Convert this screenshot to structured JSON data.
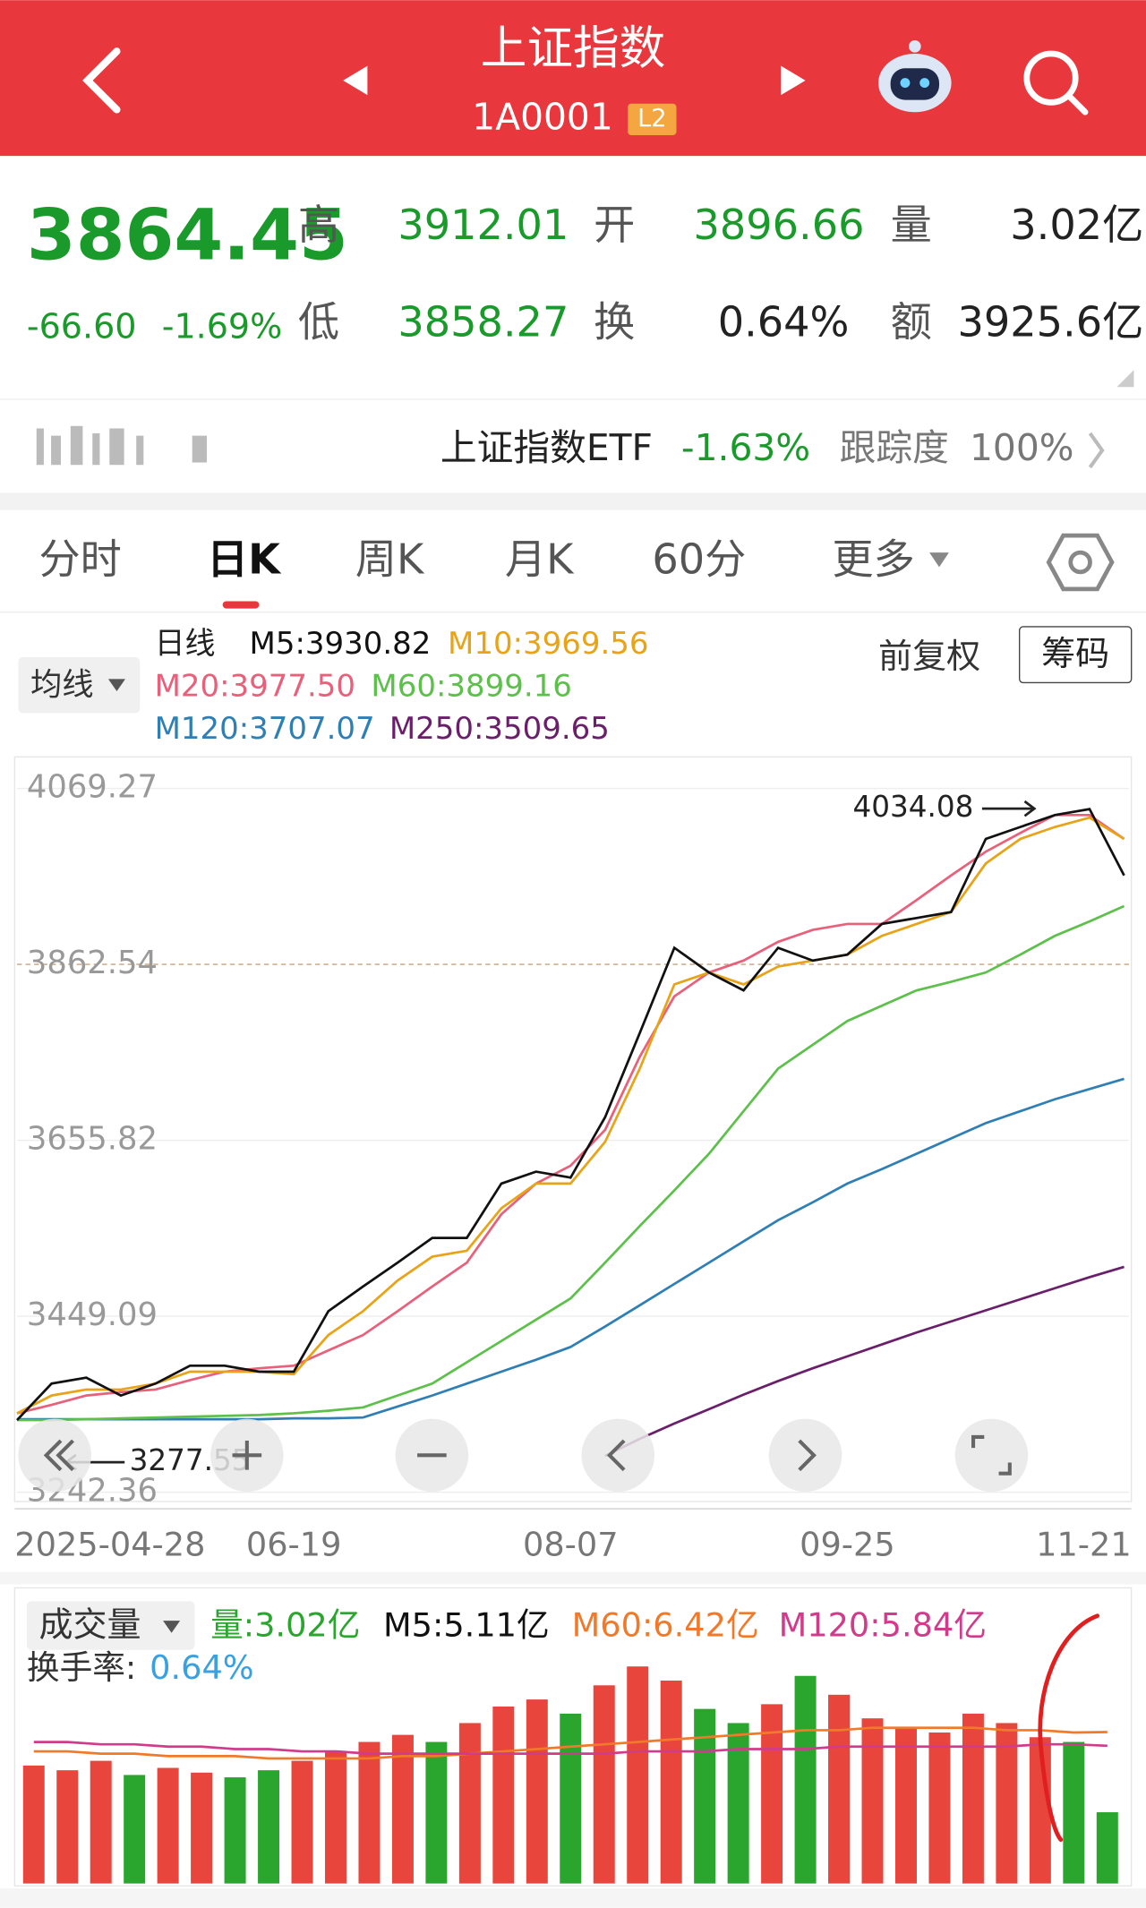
{
  "header": {
    "title": "上证指数",
    "code": "1A0001",
    "badge": "L2"
  },
  "quote": {
    "price": "3864.45",
    "change": "-66.60",
    "change_pct": "-1.69%",
    "fields": [
      {
        "label": "高",
        "value": "3912.01"
      },
      {
        "label": "开",
        "value": "3896.66"
      },
      {
        "label": "量",
        "value": "3.02亿"
      },
      {
        "label": "低",
        "value": "3858.27"
      },
      {
        "label": "换",
        "value": "0.64%"
      },
      {
        "label": "额",
        "value": "3925.6亿"
      }
    ]
  },
  "etf": {
    "name": "上证指数ETF",
    "change": "-1.63%",
    "track_label": "跟踪度",
    "track": "100%"
  },
  "tabs": [
    "分时",
    "日K",
    "周K",
    "月K",
    "60分",
    "更多"
  ],
  "indicator": {
    "button": "均线",
    "period": "日线",
    "adjust": "前复权",
    "chips": "筹码"
  },
  "chart_data": [
    {
      "type": "line",
      "title": "日线",
      "categories": [
        "2025-04-28",
        null,
        null,
        null,
        null,
        null,
        null,
        null,
        "06-19",
        null,
        null,
        null,
        null,
        null,
        null,
        null,
        "08-07",
        null,
        null,
        null,
        null,
        null,
        null,
        null,
        "09-25",
        null,
        null,
        null,
        null,
        null,
        null,
        null,
        "11-21"
      ],
      "series": [
        {
          "name": "M5:3930.82",
          "color": "#111111",
          "values": [
            3327,
            3370,
            3377,
            3356,
            3370,
            3391,
            3391,
            3384,
            3384,
            3455,
            3484,
            3512,
            3541,
            3541,
            3605,
            3619,
            3612,
            3683,
            3782,
            3882,
            3853,
            3832,
            3882,
            3867,
            3874,
            3910,
            3917,
            3924,
            4010,
            4024,
            4038,
            4045,
            3967
          ]
        },
        {
          "name": "M10:3969.56",
          "color": "#e8a317",
          "values": [
            3335,
            3356,
            3363,
            3363,
            3370,
            3384,
            3384,
            3384,
            3381,
            3427,
            3455,
            3491,
            3519,
            3526,
            3576,
            3605,
            3605,
            3654,
            3740,
            3839,
            3853,
            3839,
            3860,
            3867,
            3874,
            3896,
            3910,
            3924,
            3981,
            4010,
            4024,
            4035,
            4010
          ]
        },
        {
          "name": "M20:3977.50",
          "color": "#e8607a",
          "values": [
            3335,
            3345,
            3356,
            3360,
            3363,
            3374,
            3384,
            3388,
            3391,
            3409,
            3427,
            3455,
            3484,
            3512,
            3569,
            3605,
            3626,
            3668,
            3754,
            3825,
            3853,
            3867,
            3889,
            3903,
            3910,
            3910,
            3938,
            3967,
            3995,
            4017,
            4038,
            4038,
            4010
          ]
        },
        {
          "name": "M60:3899.16",
          "color": "#5cc04a",
          "values": [
            3327,
            3327,
            3328,
            3329,
            3330,
            3331,
            3332,
            3333,
            3335,
            3338,
            3342,
            3356,
            3370,
            3395,
            3420,
            3445,
            3470,
            3512,
            3555,
            3597,
            3640,
            3690,
            3740,
            3768,
            3796,
            3814,
            3832,
            3842,
            3853,
            3874,
            3896,
            3913,
            3931
          ]
        },
        {
          "name": "M120:3707.07",
          "color": "#2f7fb5",
          "values": [
            3328,
            3328,
            3328,
            3328,
            3328,
            3328,
            3328,
            3328,
            3329,
            3329,
            3330,
            3343,
            3356,
            3370,
            3384,
            3398,
            3413,
            3437,
            3462,
            3487,
            3512,
            3537,
            3562,
            3583,
            3605,
            3622,
            3640,
            3658,
            3676,
            3690,
            3704,
            3716,
            3728
          ]
        },
        {
          "name": "M250:3509.65",
          "color": "#6a1f6a",
          "values": [
            null,
            null,
            null,
            null,
            null,
            null,
            null,
            null,
            null,
            null,
            null,
            null,
            null,
            null,
            null,
            null,
            null,
            3285,
            3305,
            3323,
            3340,
            3357,
            3373,
            3388,
            3402,
            3416,
            3430,
            3443,
            3456,
            3469,
            3482,
            3495,
            3507
          ]
        }
      ],
      "ylim": [
        3230,
        4102
      ],
      "yticks": [
        3242.36,
        3449.09,
        3655.82,
        3862.54,
        4069.27
      ],
      "current_line": 3,
      "grid": true,
      "annotations": [
        {
          "text": "4034.08",
          "value": 4034.08,
          "index": 28
        },
        {
          "text": "3277.55",
          "value": 3277.55,
          "index": 1
        }
      ]
    },
    {
      "type": "bar",
      "title": "成交量",
      "legend": [
        {
          "label": "量:3.02亿",
          "color": "#2aa52e"
        },
        {
          "label": "M5:5.11亿",
          "color": "#111111"
        },
        {
          "label": "M60:6.42亿",
          "color": "#f07a2a"
        },
        {
          "label": "M120:5.84亿",
          "color": "#d03c8c"
        }
      ],
      "turnover_label": "换手率:",
      "turnover": "0.64%",
      "values": [
        5.0,
        4.8,
        5.2,
        4.6,
        4.9,
        4.7,
        4.5,
        4.8,
        5.2,
        5.6,
        6.0,
        6.3,
        6.0,
        6.8,
        7.5,
        7.8,
        7.2,
        8.4,
        9.2,
        8.6,
        7.4,
        6.8,
        7.6,
        8.8,
        8.0,
        7.0,
        6.6,
        6.4,
        7.2,
        6.8,
        6.2,
        6.0,
        3.02
      ],
      "colors": [
        "#e8453c",
        "#e8453c",
        "#e8453c",
        "#2aa52e",
        "#e8453c",
        "#e8453c",
        "#2aa52e",
        "#2aa52e",
        "#e8453c",
        "#e8453c",
        "#e8453c",
        "#e8453c",
        "#2aa52e",
        "#e8453c",
        "#e8453c",
        "#e8453c",
        "#2aa52e",
        "#e8453c",
        "#e8453c",
        "#e8453c",
        "#2aa52e",
        "#2aa52e",
        "#e8453c",
        "#2aa52e",
        "#e8453c",
        "#e8453c",
        "#e8453c",
        "#e8453c",
        "#e8453c",
        "#e8453c",
        "#e8453c",
        "#2aa52e",
        "#2aa52e"
      ],
      "series": [
        {
          "name": "M60",
          "color": "#f07a2a",
          "values": [
            5.6,
            5.6,
            5.5,
            5.5,
            5.4,
            5.4,
            5.4,
            5.3,
            5.3,
            5.3,
            5.3,
            5.4,
            5.4,
            5.5,
            5.6,
            5.7,
            5.8,
            5.9,
            6.0,
            6.1,
            6.2,
            6.3,
            6.4,
            6.5,
            6.5,
            6.6,
            6.6,
            6.6,
            6.6,
            6.5,
            6.5,
            6.4,
            6.42
          ]
        },
        {
          "name": "M120",
          "color": "#d03c8c",
          "values": [
            6.0,
            6.0,
            5.9,
            5.9,
            5.8,
            5.8,
            5.7,
            5.7,
            5.6,
            5.6,
            5.5,
            5.5,
            5.5,
            5.5,
            5.5,
            5.5,
            5.5,
            5.5,
            5.6,
            5.6,
            5.6,
            5.7,
            5.7,
            5.7,
            5.8,
            5.8,
            5.8,
            5.8,
            5.8,
            5.8,
            5.9,
            5.9,
            5.84
          ]
        }
      ],
      "ylim": [
        0,
        11.5
      ]
    }
  ]
}
